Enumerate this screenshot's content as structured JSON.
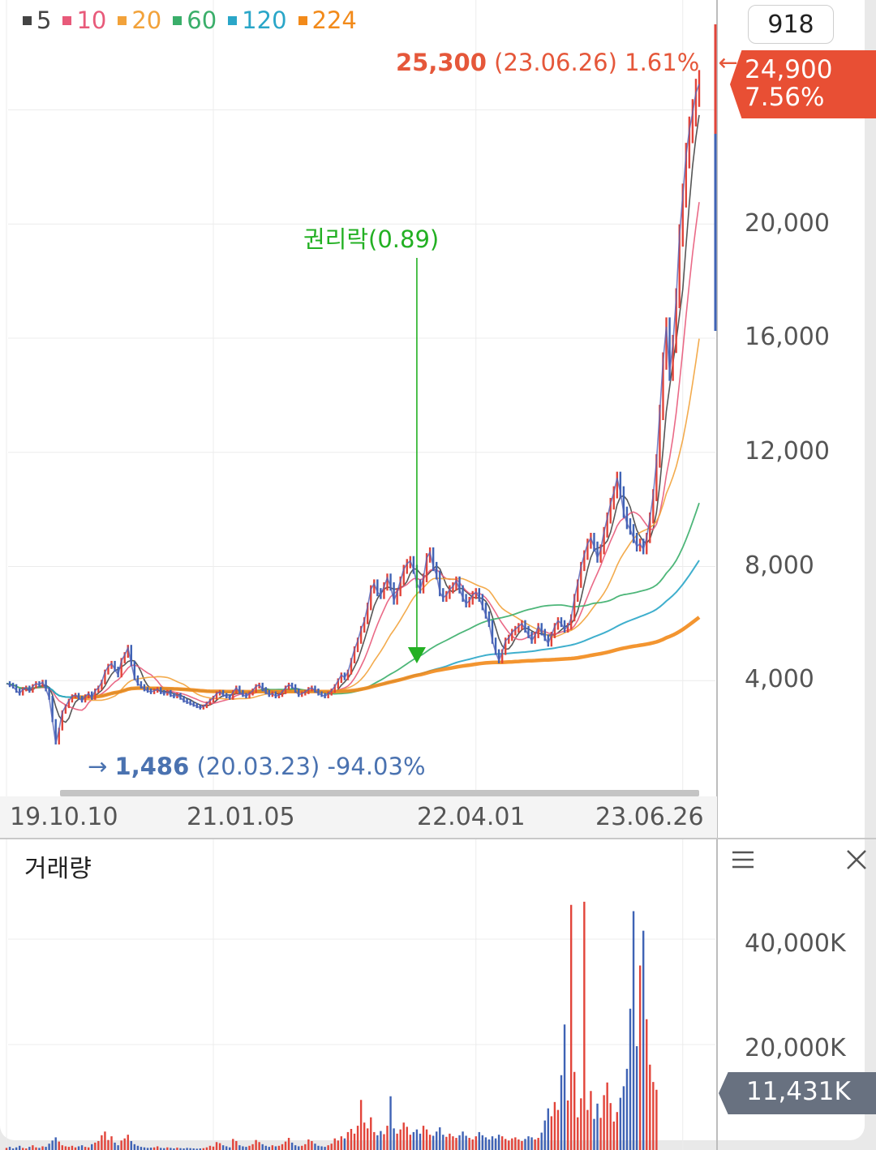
{
  "legend": [
    {
      "label": "5",
      "color": "#444444"
    },
    {
      "label": "10",
      "color": "#e85a7a"
    },
    {
      "label": "20",
      "color": "#f2a23a"
    },
    {
      "label": "60",
      "color": "#3aae6a"
    },
    {
      "label": "120",
      "color": "#2aa6c8"
    },
    {
      "label": "224",
      "color": "#f28a1a"
    }
  ],
  "top_right_value": "918",
  "current_price": {
    "price": "24,900",
    "change": "7.56%",
    "color": "#e84f34"
  },
  "high_note": {
    "price": "25,300",
    "detail": "(23.06.26) 1.61%",
    "arrow": "←"
  },
  "low_note": {
    "arrow": "→",
    "price": "1,486",
    "detail": "(20.03.23) -94.03%"
  },
  "event_note": {
    "label": "권리락(0.89)",
    "color": "#23b023"
  },
  "volume_panel": {
    "title": "거래량",
    "current": "11,431K"
  },
  "chart_data": {
    "type": "line",
    "price_axis": {
      "ylim": [
        0,
        27000
      ],
      "ticks": [
        "20,000",
        "16,000",
        "12,000",
        "8,000",
        "4,000"
      ],
      "tick_values": [
        20000,
        16000,
        12000,
        8000,
        4000
      ]
    },
    "date_ticks": [
      {
        "label": "19.10.10",
        "index": 0
      },
      {
        "label": "21.01.05",
        "index": 63
      },
      {
        "label": "22.04.01",
        "index": 143
      },
      {
        "label": "23.06.26",
        "index": 206
      }
    ],
    "event_index": 125,
    "price_series": [
      3900,
      3850,
      3800,
      3650,
      3550,
      3700,
      3750,
      3650,
      3800,
      3900,
      3850,
      3950,
      3700,
      3400,
      2600,
      1800,
      2300,
      2900,
      3100,
      3300,
      3450,
      3500,
      3400,
      3300,
      3450,
      3550,
      3400,
      3650,
      3750,
      3950,
      4300,
      4500,
      4600,
      4400,
      4200,
      4700,
      4900,
      5150,
      4600,
      4100,
      3900,
      3800,
      3700,
      3650,
      3600,
      3650,
      3700,
      3600,
      3550,
      3600,
      3500,
      3450,
      3500,
      3400,
      3300,
      3250,
      3200,
      3150,
      3100,
      3050,
      3100,
      3200,
      3300,
      3400,
      3550,
      3600,
      3500,
      3450,
      3400,
      3600,
      3750,
      3600,
      3500,
      3450,
      3550,
      3650,
      3800,
      3850,
      3700,
      3600,
      3500,
      3550,
      3450,
      3500,
      3600,
      3750,
      3850,
      3800,
      3650,
      3500,
      3550,
      3600,
      3700,
      3750,
      3650,
      3550,
      3500,
      3450,
      3550,
      3650,
      3800,
      4000,
      4200,
      4100,
      4300,
      4700,
      5100,
      5400,
      5800,
      6100,
      6600,
      7200,
      7400,
      7100,
      7000,
      7300,
      7600,
      7300,
      6800,
      7100,
      7500,
      7900,
      8100,
      8200,
      7900,
      7400,
      7200,
      7600,
      8300,
      8500,
      8000,
      7700,
      7100,
      6900,
      7000,
      7200,
      7300,
      7500,
      7200,
      6900,
      6700,
      6800,
      7000,
      7100,
      6900,
      6600,
      6300,
      6000,
      5400,
      5000,
      4700,
      5000,
      5400,
      5500,
      5700,
      5800,
      5900,
      6000,
      5800,
      5600,
      5400,
      5600,
      5900,
      5700,
      5500,
      5300,
      5600,
      5900,
      6100,
      6000,
      5800,
      5900,
      6200,
      6900,
      7400,
      8000,
      8400,
      8800,
      9000,
      8700,
      8300,
      8600,
      9200,
      9700,
      10200,
      10600,
      11100,
      10600,
      9900,
      9500,
      9300,
      9000,
      8700,
      8800,
      8600,
      9000,
      9700,
      10500,
      11700,
      13400,
      15200,
      16400,
      14800,
      15800,
      17400,
      19600,
      21000,
      22400,
      23300,
      23900,
      24600,
      24900
    ],
    "ma_series": [
      {
        "name": "5",
        "period": 5
      },
      {
        "name": "10",
        "period": 10
      },
      {
        "name": "20",
        "period": 20
      },
      {
        "name": "60",
        "period": 60
      },
      {
        "name": "120",
        "period": 120
      },
      {
        "name": "224",
        "period": 224
      }
    ],
    "volume_axis": {
      "ylim": [
        0,
        52000
      ],
      "ticks": [
        "40,000K",
        "20,000K"
      ],
      "tick_values": [
        40000,
        20000
      ]
    },
    "volume_series": [
      400,
      600,
      300,
      500,
      800,
      400,
      300,
      600,
      900,
      500,
      400,
      700,
      600,
      1200,
      1800,
      2400,
      1600,
      900,
      700,
      600,
      800,
      500,
      700,
      900,
      600,
      500,
      1100,
      1400,
      1700,
      2800,
      3500,
      1900,
      2600,
      1400,
      900,
      1800,
      2200,
      2900,
      1700,
      1100,
      800,
      600,
      500,
      400,
      450,
      500,
      700,
      400,
      350,
      500,
      400,
      300,
      450,
      350,
      300,
      400,
      350,
      300,
      250,
      300,
      350,
      500,
      800,
      650,
      1500,
      1300,
      900,
      700,
      500,
      2100,
      1700,
      900,
      700,
      600,
      800,
      1100,
      1900,
      1500,
      1100,
      800,
      600,
      900,
      700,
      800,
      1100,
      1600,
      2300,
      1400,
      900,
      700,
      800,
      1100,
      2000,
      1700,
      1200,
      800,
      700,
      600,
      900,
      1200,
      2200,
      1800,
      2600,
      2200,
      3400,
      4000,
      3100,
      4600,
      9500,
      5200,
      4100,
      6200,
      3400,
      2800,
      3600,
      3000,
      4600,
      10200,
      4100,
      3100,
      3900,
      5200,
      4400,
      2900,
      3400,
      3900,
      3100,
      4600,
      3900,
      2900,
      2700,
      3500,
      4300,
      2900,
      2500,
      3100,
      2600,
      2300,
      2800,
      3500,
      2700,
      2300,
      2000,
      2600,
      3400,
      2800,
      2400,
      2000,
      2600,
      2200,
      2900,
      2600,
      2100,
      1800,
      2200,
      2400,
      2000,
      1700,
      2100,
      2600,
      2400,
      2000,
      2300,
      3300,
      5600,
      7900,
      6400,
      9100,
      7600,
      14200,
      23800,
      9400,
      46500,
      14800,
      6200,
      9800,
      47100,
      7600,
      11200,
      5900,
      8800,
      6100,
      10400,
      12800,
      8900,
      5400,
      7200,
      9900,
      12100,
      15400,
      26800,
      45300,
      19700,
      35000,
      41600,
      24800,
      16200,
      12900,
      11431
    ]
  }
}
